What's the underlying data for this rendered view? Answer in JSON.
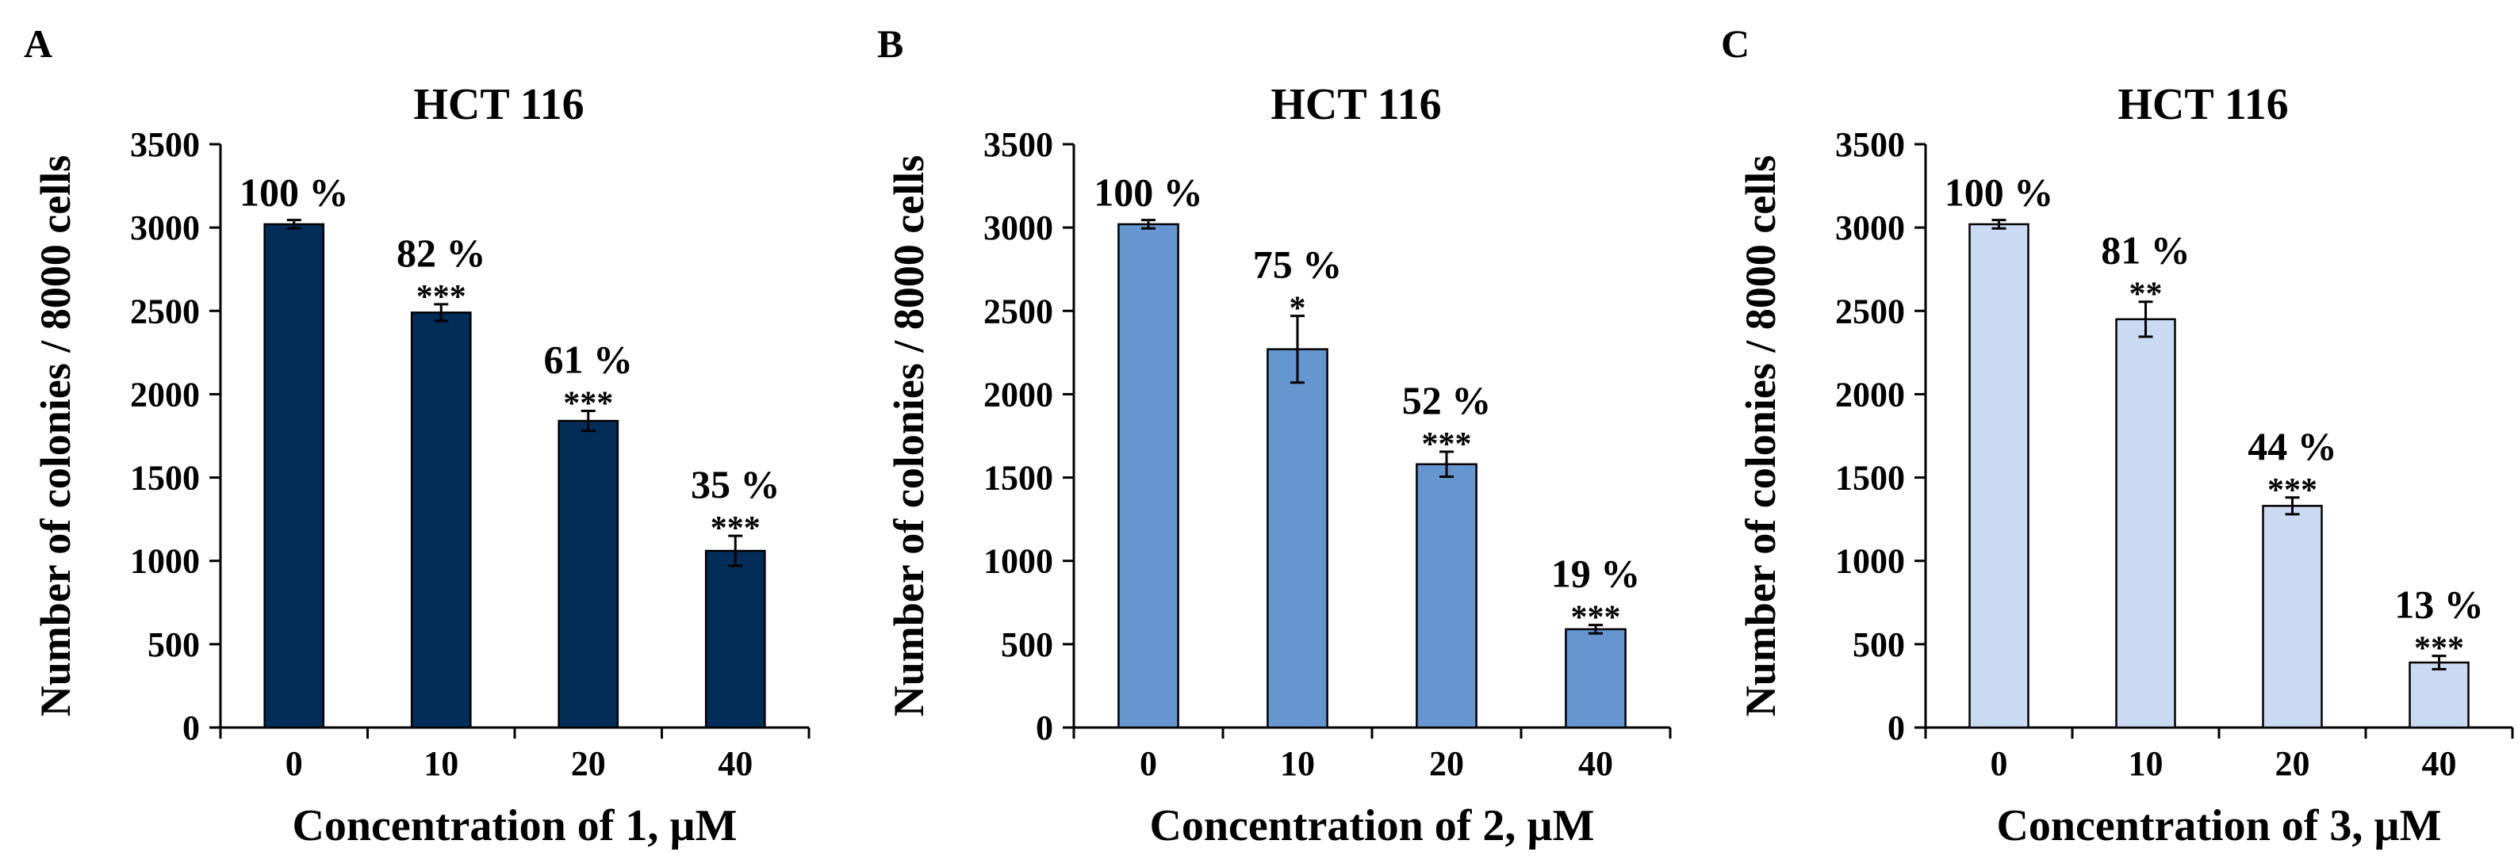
{
  "colors": {
    "axis": "#000000",
    "text": "#000000",
    "bar_stroke": "#000000"
  },
  "chart_data": [
    {
      "type": "bar",
      "panel": "A",
      "title": "HCT 116",
      "xlabel": "Concentration of 1, µM",
      "ylabel": "Number of colonies / 8000 cells",
      "categories": [
        "0",
        "10",
        "20",
        "40"
      ],
      "values": [
        3020,
        2490,
        1840,
        1060
      ],
      "errors": [
        25,
        50,
        60,
        90
      ],
      "percent_labels": [
        "100 %",
        "82 %",
        "61 %",
        "35 %"
      ],
      "significance": [
        "",
        "***",
        "***",
        "***"
      ],
      "yticks": [
        "0",
        "500",
        "1000",
        "1500",
        "2000",
        "2500",
        "3000",
        "3500"
      ],
      "ylim": [
        0,
        3500
      ],
      "bar_color": "#032d59",
      "grid": false
    },
    {
      "type": "bar",
      "panel": "B",
      "title": "HCT 116",
      "xlabel": "Concentration of 2, µM",
      "ylabel": "Number of colonies / 8000 cells",
      "categories": [
        "0",
        "10",
        "20",
        "40"
      ],
      "values": [
        3020,
        2270,
        1580,
        590
      ],
      "errors": [
        25,
        200,
        75,
        25
      ],
      "percent_labels": [
        "100 %",
        "75 %",
        "52 %",
        "19 %"
      ],
      "significance": [
        "",
        "*",
        "***",
        "***"
      ],
      "yticks": [
        "0",
        "500",
        "1000",
        "1500",
        "2000",
        "2500",
        "3000",
        "3500"
      ],
      "ylim": [
        0,
        3500
      ],
      "bar_color": "#6596cf",
      "grid": false
    },
    {
      "type": "bar",
      "panel": "C",
      "title": "HCT 116",
      "xlabel": "Concentration of 3, µM",
      "ylabel": "Number of colonies / 8000 cells",
      "categories": [
        "0",
        "10",
        "20",
        "40"
      ],
      "values": [
        3020,
        2450,
        1330,
        390
      ],
      "errors": [
        25,
        105,
        50,
        40
      ],
      "percent_labels": [
        "100 %",
        "81 %",
        "44 %",
        "13 %"
      ],
      "significance": [
        "",
        "**",
        "***",
        "***"
      ],
      "yticks": [
        "0",
        "500",
        "1000",
        "1500",
        "2000",
        "2500",
        "3000",
        "3500"
      ],
      "ylim": [
        0,
        3500
      ],
      "bar_color": "#c9daf2",
      "grid": false
    }
  ]
}
